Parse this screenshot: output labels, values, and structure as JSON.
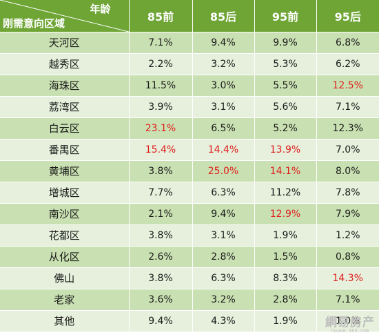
{
  "corner": {
    "top": "年龄",
    "bottom": "刚需意向区域"
  },
  "columns": [
    "85前",
    "85后",
    "95前",
    "95后"
  ],
  "highlight_color": "#e01e1e",
  "rows": [
    {
      "district": "天河区",
      "values": [
        "7.1%",
        "9.4%",
        "9.9%",
        "6.8%"
      ],
      "highlight": [
        false,
        false,
        false,
        false
      ]
    },
    {
      "district": "越秀区",
      "values": [
        "2.2%",
        "3.2%",
        "5.3%",
        "6.2%"
      ],
      "highlight": [
        false,
        false,
        false,
        false
      ]
    },
    {
      "district": "海珠区",
      "values": [
        "11.5%",
        "3.0%",
        "5.5%",
        "12.5%"
      ],
      "highlight": [
        false,
        false,
        false,
        true
      ]
    },
    {
      "district": "荔湾区",
      "values": [
        "3.9%",
        "3.1%",
        "5.6%",
        "7.1%"
      ],
      "highlight": [
        false,
        false,
        false,
        false
      ]
    },
    {
      "district": "白云区",
      "values": [
        "23.1%",
        "6.5%",
        "5.2%",
        "12.3%"
      ],
      "highlight": [
        true,
        false,
        false,
        false
      ]
    },
    {
      "district": "番禺区",
      "values": [
        "15.4%",
        "14.4%",
        "13.9%",
        "7.0%"
      ],
      "highlight": [
        true,
        true,
        true,
        false
      ]
    },
    {
      "district": "黄埔区",
      "values": [
        "3.8%",
        "25.0%",
        "14.1%",
        "8.0%"
      ],
      "highlight": [
        false,
        true,
        true,
        false
      ]
    },
    {
      "district": "增城区",
      "values": [
        "7.7%",
        "6.3%",
        "11.2%",
        "7.8%"
      ],
      "highlight": [
        false,
        false,
        false,
        false
      ]
    },
    {
      "district": "南沙区",
      "values": [
        "2.1%",
        "9.4%",
        "12.9%",
        "7.9%"
      ],
      "highlight": [
        false,
        false,
        true,
        false
      ]
    },
    {
      "district": "花都区",
      "values": [
        "3.8%",
        "3.1%",
        "1.9%",
        "1.2%"
      ],
      "highlight": [
        false,
        false,
        false,
        false
      ]
    },
    {
      "district": "从化区",
      "values": [
        "2.6%",
        "2.8%",
        "1.5%",
        "0.8%"
      ],
      "highlight": [
        false,
        false,
        false,
        false
      ]
    },
    {
      "district": "佛山",
      "values": [
        "3.8%",
        "6.3%",
        "8.3%",
        "14.3%"
      ],
      "highlight": [
        false,
        false,
        false,
        true
      ]
    },
    {
      "district": "老家",
      "values": [
        "3.6%",
        "3.2%",
        "2.8%",
        "7.1%"
      ],
      "highlight": [
        false,
        false,
        false,
        false
      ]
    },
    {
      "district": "其他",
      "values": [
        "9.4%",
        "4.3%",
        "1.9%",
        "1.0%"
      ],
      "highlight": [
        false,
        false,
        false,
        false
      ]
    }
  ],
  "watermark": {
    "main": "網易房产",
    "sub": "house.163.com"
  }
}
